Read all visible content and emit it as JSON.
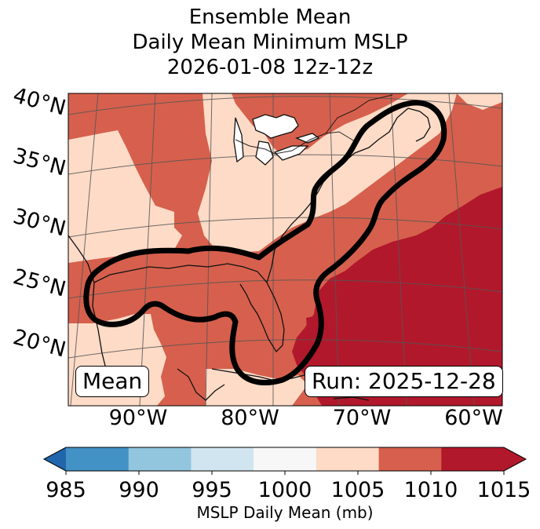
{
  "title": {
    "line1": "Ensemble Mean",
    "line2": "Daily Mean Minimum MSLP",
    "line3": "2026-01-08 12z-12z"
  },
  "badges": {
    "left": "Mean",
    "right": "Run: 2025-12-28"
  },
  "chart_data": {
    "type": "heatmap",
    "map_extent": {
      "lon_min": -97,
      "lon_max": -57,
      "lat_min": 16,
      "lat_max": 42
    },
    "lat_ticks": [
      {
        "value": 40,
        "label": "40°N"
      },
      {
        "value": 35,
        "label": "35°N"
      },
      {
        "value": 30,
        "label": "30°N"
      },
      {
        "value": 25,
        "label": "25°N"
      },
      {
        "value": 20,
        "label": "20°N"
      }
    ],
    "lon_ticks": [
      {
        "value": -90,
        "label": "90°W"
      },
      {
        "value": -80,
        "label": "80°W"
      },
      {
        "value": -70,
        "label": "70°W"
      },
      {
        "value": -60,
        "label": "60°W"
      }
    ],
    "colorbar": {
      "label": "MSLP Daily Mean (mb)",
      "bounds": [
        985,
        990,
        995,
        1000,
        1005,
        1010,
        1015
      ],
      "tick_labels": [
        "985",
        "990",
        "995",
        "1000",
        "1005",
        "1010",
        "1015"
      ],
      "colors": [
        "#4292c6",
        "#92c5de",
        "#d1e5f0",
        "#f7f7f7",
        "#fddbc7",
        "#d6604d",
        "#b2182b"
      ],
      "under_color": "#2166ac",
      "over_color": "#b2182b",
      "extend": "both"
    },
    "regions": [
      {
        "name": "1005-1010 mb",
        "color": "#fddbc7"
      },
      {
        "name": "1010-1015 mb",
        "color": "#d6604d"
      },
      {
        "name": ">1015 mb",
        "color": "#b2182b"
      }
    ],
    "contour": "Mean daily minimum MSLP envelope along the US East Coast and Gulf of Mexico"
  }
}
